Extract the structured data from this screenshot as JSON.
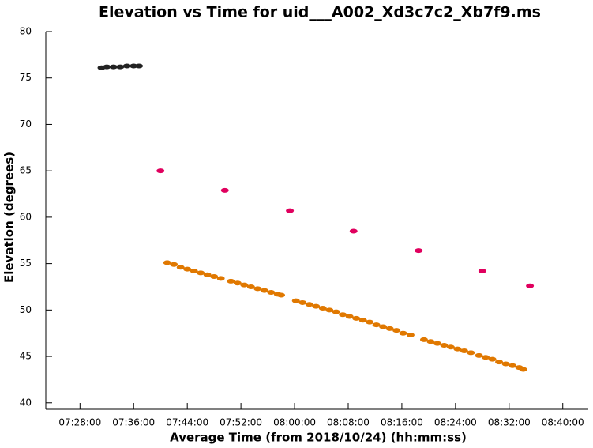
{
  "chart_data": {
    "type": "scatter",
    "title": "Elevation vs Time for uid___A002_Xd3c7c2_Xb7f9.ms",
    "x_label": "Average Time (from 2018/10/24) (hh:mm:ss)",
    "y_label": "Elevation (degrees)",
    "xlim": [
      22.9,
      103.8
    ],
    "ylim": [
      39.3,
      80
    ],
    "xticks": [
      {
        "value": 28,
        "label": "07:28:00"
      },
      {
        "value": 36,
        "label": "07:36:00"
      },
      {
        "value": 44,
        "label": "07:44:00"
      },
      {
        "value": 52,
        "label": "07:52:00"
      },
      {
        "value": 60,
        "label": "08:00:00"
      },
      {
        "value": 68,
        "label": "08:08:00"
      },
      {
        "value": 76,
        "label": "08:16:00"
      },
      {
        "value": 84,
        "label": "08:24:00"
      },
      {
        "value": 92,
        "label": "08:32:00"
      },
      {
        "value": 100,
        "label": "08:40:00"
      }
    ],
    "yticks": [
      40,
      45,
      50,
      55,
      60,
      65,
      70,
      75,
      80
    ],
    "series": [
      {
        "color": "#222222",
        "x": [
          31.2,
          32,
          33,
          34,
          35,
          36,
          36.8
        ],
        "values": [
          76.1,
          76.2,
          76.2,
          76.2,
          76.3,
          76.3,
          76.3
        ]
      },
      {
        "color": "#e0005e",
        "x": [
          40,
          49.6,
          59.3,
          68.8,
          78.5,
          88,
          95.1
        ],
        "values": [
          65.0,
          62.9,
          60.7,
          58.5,
          56.4,
          54.2,
          52.6
        ]
      },
      {
        "color": "#e07800",
        "x": [
          41,
          42,
          43,
          44,
          45,
          46,
          47,
          48,
          49,
          50.5,
          51.5,
          52.5,
          53.5,
          54.5,
          55.5,
          56.5,
          57.5,
          58,
          60.2,
          61.2,
          62.2,
          63.2,
          64.2,
          65.2,
          66.2,
          67.2,
          68.2,
          69.2,
          70.2,
          71.2,
          72.2,
          73.2,
          74.2,
          75.2,
          76.2,
          77.3,
          79.3,
          80.3,
          81.3,
          82.3,
          83.3,
          84.3,
          85.3,
          86.3,
          87.5,
          88.5,
          89.5,
          90.5,
          91.5,
          92.5,
          93.5,
          94.1
        ],
        "values": [
          55.1,
          54.9,
          54.6,
          54.4,
          54.2,
          54.0,
          53.8,
          53.6,
          53.4,
          53.1,
          52.9,
          52.7,
          52.5,
          52.3,
          52.1,
          51.9,
          51.7,
          51.6,
          51.0,
          50.8,
          50.6,
          50.4,
          50.2,
          50.0,
          49.8,
          49.5,
          49.3,
          49.1,
          48.9,
          48.7,
          48.4,
          48.2,
          48.0,
          47.8,
          47.5,
          47.3,
          46.8,
          46.6,
          46.4,
          46.2,
          46.0,
          45.8,
          45.6,
          45.4,
          45.1,
          44.9,
          44.7,
          44.4,
          44.2,
          44.0,
          43.8,
          43.6
        ]
      }
    ]
  }
}
